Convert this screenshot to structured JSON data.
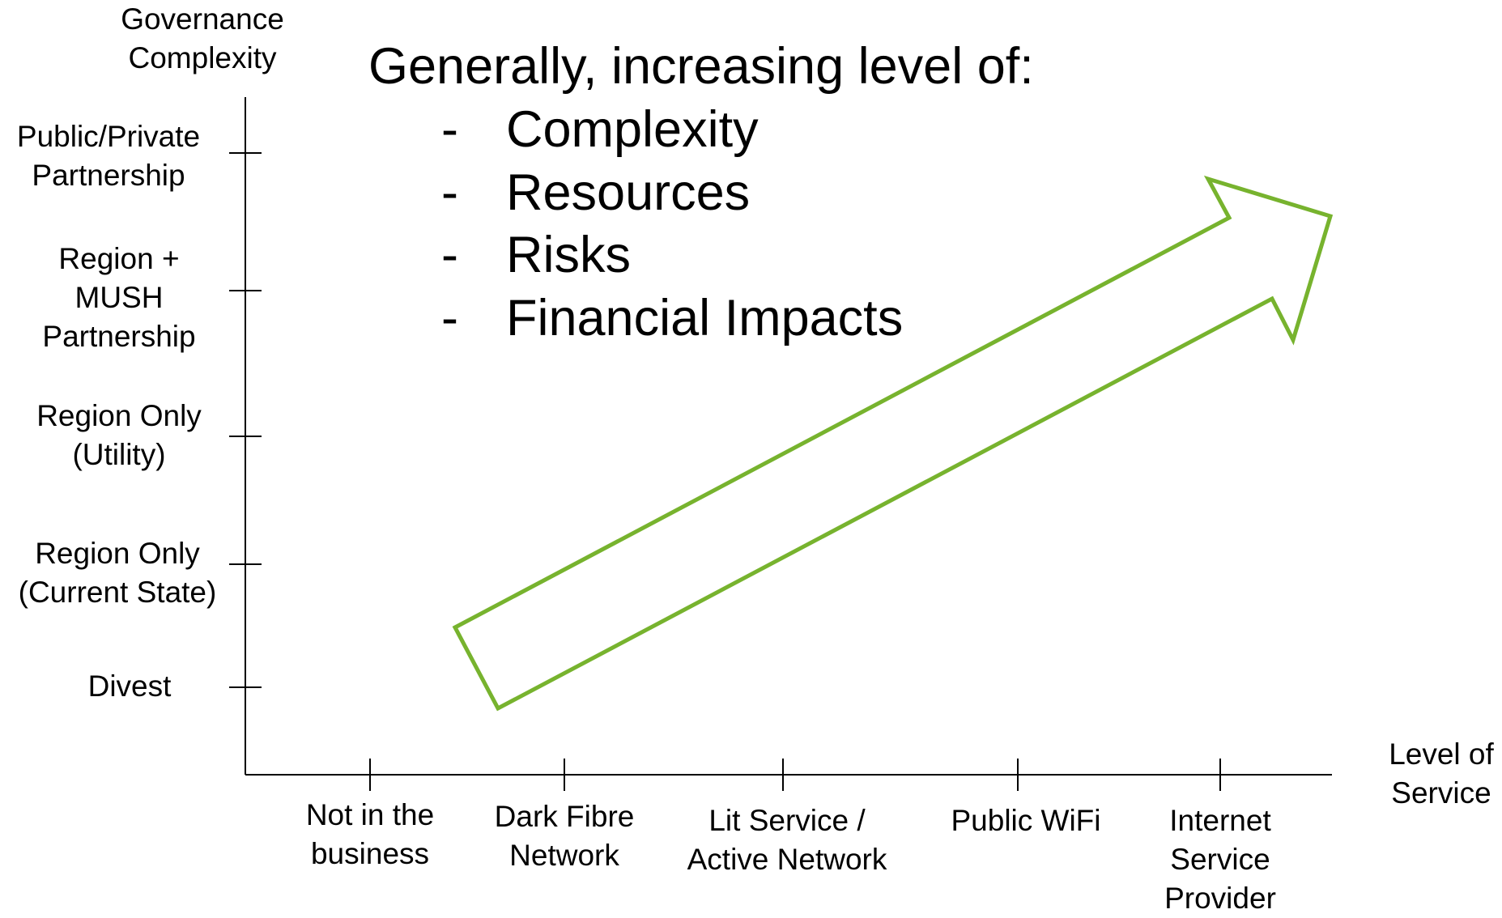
{
  "diagram": {
    "y_axis_title": "Governance\nComplexity",
    "x_axis_title": "Level of\nService",
    "y_levels": [
      "Divest",
      "Region Only\n(Current State)",
      "Region Only\n(Utility)",
      "Region +\nMUSH\nPartnership",
      "Public/Private\nPartnership"
    ],
    "x_levels": [
      "Not in the\nbusiness",
      "Dark Fibre\nNetwork",
      "Lit Service /\nActive Network",
      "Public WiFi",
      "Internet\nService\nProvider"
    ],
    "heading": "Generally, increasing level of:",
    "bullet_marker": "-",
    "bullets": [
      "Complexity",
      "Resources",
      "Risks",
      "Financial Impacts"
    ],
    "colors": {
      "arrow": "#77B32E",
      "axis": "#000000",
      "text": "#000000"
    }
  }
}
